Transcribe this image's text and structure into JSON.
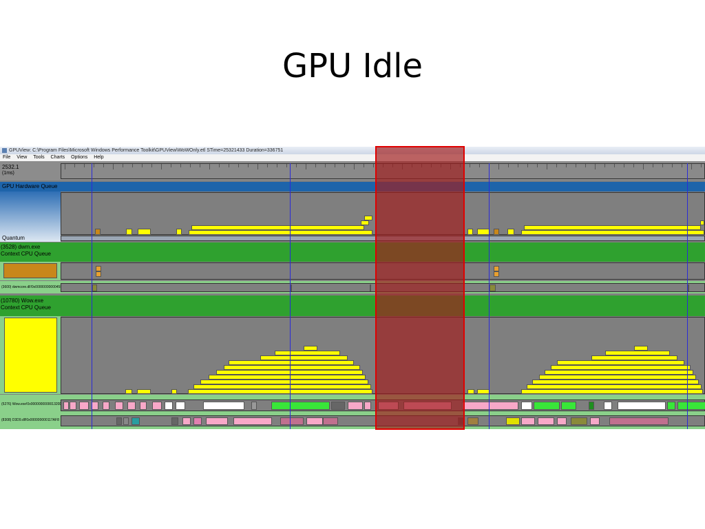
{
  "slide": {
    "title": "GPU Idle"
  },
  "window": {
    "title": "GPUView: C:\\Program Files\\Microsoft Windows Performance Toolkit\\GPUView\\WoWOnly.etl STime=25321433 Duration=336751",
    "menu": [
      "File",
      "View",
      "Tools",
      "Charts",
      "Options",
      "Help"
    ]
  },
  "timeline": {
    "time": "2532.1",
    "unit": "(1ms)"
  },
  "lanes": {
    "gpu_hw_queue": "GPU Hardware Queue",
    "quantum": "Quantum",
    "dwm_process": "(3528) dwm.exe",
    "dwm_ctx": "Context CPU Queue",
    "dwm_thread": "(3600) dwmcore.dll!0x0000000000045EE4",
    "wow_process": "(10780) Wow.exe",
    "wow_ctx": "Context CPU Queue",
    "wow_thread1": "(5276) Wow.exe!0x000000000001320D",
    "wow_thread2": "(8308) D3D9.dll!0x000000000117AF8"
  },
  "colors": {
    "packet": "#ffff00",
    "lane_green": "#2fa12f",
    "light_green": "#7ed97e",
    "blue_header": "#1e64aa",
    "highlight": "#e00000"
  }
}
